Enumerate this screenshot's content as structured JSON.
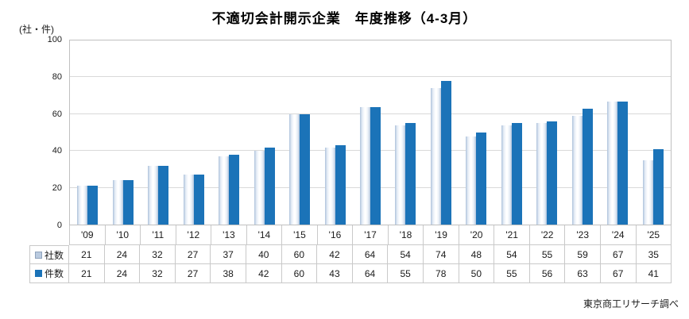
{
  "title": "不適切会計開示企業　年度推移（4-3月）",
  "unit_label": "(社・件)",
  "source_note": "東京商工リサーチ調べ",
  "colors": {
    "companies_bar_edge": "#AEC3DC",
    "companies_bar_center": "#FFFFFF",
    "cases_bar": "#1B73B8",
    "gridline": "#D9D9D9",
    "plot_border": "#C0C0C0",
    "table_border": "#C9C9C9"
  },
  "chart_data": {
    "type": "bar",
    "title": "不適切会計開示企業　年度推移（4-3月）",
    "ylabel": "(社・件)",
    "xlabel": "",
    "ylim": [
      0,
      100
    ],
    "yticks": [
      0,
      20,
      40,
      60,
      80,
      100
    ],
    "grid": true,
    "legend_position": "table-left",
    "categories": [
      "'09",
      "'10",
      "'11",
      "'12",
      "'13",
      "'14",
      "'15",
      "'16",
      "'17",
      "'18",
      "'19",
      "'20",
      "'21",
      "'22",
      "'23",
      "'24",
      "'25"
    ],
    "series": [
      {
        "name": "社数",
        "values": [
          21,
          24,
          32,
          27,
          37,
          40,
          60,
          42,
          64,
          54,
          74,
          48,
          54,
          55,
          59,
          67,
          35
        ]
      },
      {
        "name": "件数",
        "values": [
          21,
          24,
          32,
          27,
          38,
          42,
          60,
          43,
          64,
          55,
          78,
          50,
          55,
          56,
          63,
          67,
          41
        ]
      }
    ]
  }
}
